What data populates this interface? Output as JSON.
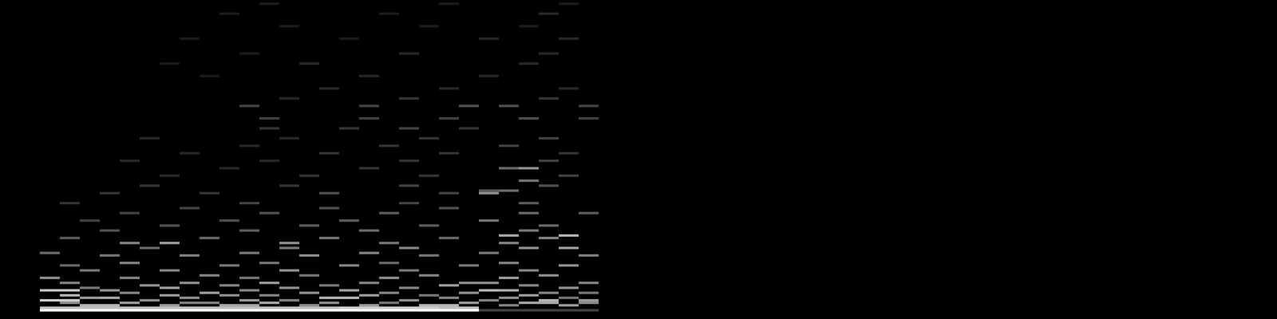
{
  "chart_data": {
    "type": "heatmap",
    "xlim": [
      0,
      64
    ],
    "ylim": [
      0,
      128
    ],
    "color_range": [
      0,
      100
    ],
    "tick_labels": false,
    "grid": false,
    "cells": [
      [
        2,
        3,
        100
      ],
      [
        3,
        3,
        100
      ],
      [
        4,
        3,
        100
      ],
      [
        5,
        3,
        100
      ],
      [
        6,
        3,
        100
      ],
      [
        7,
        3,
        100
      ],
      [
        8,
        3,
        100
      ],
      [
        9,
        3,
        100
      ],
      [
        10,
        3,
        100
      ],
      [
        11,
        3,
        100
      ],
      [
        12,
        3,
        100
      ],
      [
        13,
        3,
        100
      ],
      [
        14,
        3,
        100
      ],
      [
        15,
        3,
        100
      ],
      [
        16,
        3,
        100
      ],
      [
        17,
        3,
        100
      ],
      [
        18,
        3,
        100
      ],
      [
        19,
        3,
        100
      ],
      [
        20,
        3,
        100
      ],
      [
        21,
        3,
        100
      ],
      [
        22,
        3,
        100
      ],
      [
        23,
        3,
        100
      ],
      [
        24,
        3,
        25
      ],
      [
        25,
        3,
        25
      ],
      [
        26,
        3,
        25
      ],
      [
        27,
        3,
        25
      ],
      [
        28,
        3,
        25
      ],
      [
        29,
        3,
        25
      ],
      [
        2,
        4,
        75
      ],
      [
        3,
        4,
        75
      ],
      [
        4,
        4,
        75
      ],
      [
        5,
        4,
        75
      ],
      [
        6,
        4,
        75
      ],
      [
        7,
        4,
        75
      ],
      [
        8,
        4,
        75
      ],
      [
        9,
        4,
        75
      ],
      [
        10,
        4,
        75
      ],
      [
        11,
        4,
        75
      ],
      [
        12,
        4,
        75
      ],
      [
        13,
        4,
        75
      ],
      [
        14,
        4,
        75
      ],
      [
        15,
        4,
        75
      ],
      [
        16,
        4,
        75
      ],
      [
        17,
        4,
        80
      ],
      [
        18,
        4,
        80
      ],
      [
        19,
        4,
        80
      ],
      [
        20,
        4,
        80
      ],
      [
        21,
        4,
        80
      ],
      [
        22,
        4,
        75
      ],
      [
        23,
        4,
        75
      ],
      [
        4,
        5,
        70
      ],
      [
        5,
        5,
        70
      ],
      [
        8,
        5,
        60
      ],
      [
        11,
        5,
        65
      ],
      [
        12,
        5,
        65
      ],
      [
        15,
        5,
        55
      ],
      [
        18,
        5,
        60
      ],
      [
        21,
        5,
        70
      ],
      [
        22,
        5,
        70
      ],
      [
        25,
        5,
        50
      ],
      [
        28,
        5,
        60
      ],
      [
        3,
        6,
        55
      ],
      [
        6,
        6,
        60
      ],
      [
        9,
        6,
        50
      ],
      [
        10,
        6,
        50
      ],
      [
        13,
        6,
        65
      ],
      [
        16,
        6,
        55
      ],
      [
        19,
        6,
        45
      ],
      [
        23,
        6,
        60
      ],
      [
        26,
        6,
        65
      ],
      [
        27,
        6,
        65
      ],
      [
        29,
        6,
        55
      ],
      [
        2,
        7,
        80
      ],
      [
        3,
        7,
        80
      ],
      [
        7,
        7,
        55
      ],
      [
        12,
        7,
        60
      ],
      [
        14,
        7,
        50
      ],
      [
        20,
        7,
        55
      ],
      [
        24,
        7,
        50
      ],
      [
        27,
        7,
        70
      ],
      [
        29,
        7,
        60
      ],
      [
        4,
        8,
        60
      ],
      [
        5,
        8,
        65
      ],
      [
        9,
        8,
        55
      ],
      [
        16,
        8,
        70
      ],
      [
        17,
        8,
        70
      ],
      [
        22,
        8,
        50
      ],
      [
        25,
        8,
        55
      ],
      [
        28,
        8,
        45
      ],
      [
        3,
        9,
        70
      ],
      [
        8,
        9,
        60
      ],
      [
        11,
        9,
        55
      ],
      [
        13,
        9,
        50
      ],
      [
        18,
        9,
        60
      ],
      [
        21,
        9,
        45
      ],
      [
        26,
        9,
        60
      ],
      [
        6,
        10,
        50
      ],
      [
        10,
        10,
        60
      ],
      [
        15,
        10,
        55
      ],
      [
        19,
        10,
        50
      ],
      [
        23,
        10,
        55
      ],
      [
        27,
        10,
        50
      ],
      [
        29,
        10,
        45
      ],
      [
        2,
        11,
        75
      ],
      [
        3,
        11,
        75
      ],
      [
        5,
        11,
        55
      ],
      [
        12,
        11,
        50
      ],
      [
        17,
        11,
        60
      ],
      [
        24,
        11,
        70
      ],
      [
        25,
        11,
        65
      ],
      [
        4,
        12,
        45
      ],
      [
        8,
        12,
        60
      ],
      [
        14,
        12,
        55
      ],
      [
        20,
        12,
        50
      ],
      [
        28,
        12,
        55
      ],
      [
        7,
        13,
        55
      ],
      [
        11,
        13,
        50
      ],
      [
        16,
        13,
        45
      ],
      [
        22,
        13,
        60
      ],
      [
        26,
        13,
        50
      ],
      [
        3,
        14,
        50
      ],
      [
        9,
        14,
        55
      ],
      [
        13,
        14,
        60
      ],
      [
        18,
        14,
        50
      ],
      [
        23,
        14,
        55
      ],
      [
        24,
        14,
        55
      ],
      [
        29,
        14,
        50
      ],
      [
        2,
        16,
        55
      ],
      [
        6,
        16,
        50
      ],
      [
        12,
        16,
        45
      ],
      [
        19,
        16,
        55
      ],
      [
        25,
        16,
        60
      ],
      [
        10,
        17,
        50
      ],
      [
        15,
        17,
        45
      ],
      [
        21,
        17,
        50
      ],
      [
        27,
        17,
        55
      ],
      [
        4,
        19,
        45
      ],
      [
        8,
        19,
        50
      ],
      [
        14,
        19,
        55
      ],
      [
        20,
        19,
        45
      ],
      [
        26,
        19,
        50
      ],
      [
        3,
        21,
        40
      ],
      [
        11,
        21,
        45
      ],
      [
        17,
        21,
        50
      ],
      [
        23,
        21,
        45
      ],
      [
        28,
        21,
        55
      ],
      [
        6,
        22,
        50
      ],
      [
        13,
        22,
        45
      ],
      [
        19,
        22,
        40
      ],
      [
        25,
        22,
        50
      ],
      [
        5,
        25,
        45
      ],
      [
        9,
        25,
        50
      ],
      [
        15,
        25,
        55
      ],
      [
        21,
        25,
        45
      ],
      [
        29,
        25,
        50
      ],
      [
        2,
        26,
        40
      ],
      [
        12,
        26,
        45
      ],
      [
        18,
        26,
        50
      ],
      [
        24,
        26,
        45
      ],
      [
        7,
        28,
        40
      ],
      [
        14,
        28,
        45
      ],
      [
        20,
        28,
        50
      ],
      [
        26,
        28,
        55
      ],
      [
        28,
        28,
        60
      ],
      [
        6,
        30,
        50
      ],
      [
        8,
        30,
        60
      ],
      [
        14,
        30,
        55
      ],
      [
        19,
        30,
        45
      ],
      [
        25,
        30,
        50
      ],
      [
        3,
        32,
        35
      ],
      [
        10,
        32,
        40
      ],
      [
        16,
        32,
        45
      ],
      [
        22,
        32,
        40
      ],
      [
        27,
        32,
        50
      ],
      [
        25,
        33,
        65
      ],
      [
        28,
        33,
        70
      ],
      [
        5,
        35,
        30
      ],
      [
        12,
        35,
        35
      ],
      [
        18,
        35,
        40
      ],
      [
        26,
        35,
        45
      ],
      [
        8,
        37,
        30
      ],
      [
        15,
        37,
        35
      ],
      [
        21,
        37,
        35
      ],
      [
        27,
        37,
        40
      ],
      [
        4,
        39,
        25
      ],
      [
        11,
        39,
        30
      ],
      [
        17,
        39,
        35
      ],
      [
        24,
        39,
        45
      ],
      [
        6,
        42,
        25
      ],
      [
        13,
        42,
        30
      ],
      [
        19,
        42,
        35
      ],
      [
        26,
        42,
        40
      ],
      [
        29,
        42,
        35
      ],
      [
        9,
        44,
        25
      ],
      [
        16,
        44,
        30
      ],
      [
        22,
        44,
        30
      ],
      [
        3,
        46,
        20
      ],
      [
        12,
        46,
        25
      ],
      [
        20,
        46,
        25
      ],
      [
        26,
        46,
        35
      ],
      [
        5,
        50,
        20
      ],
      [
        10,
        50,
        20
      ],
      [
        16,
        50,
        30
      ],
      [
        22,
        50,
        25
      ],
      [
        24,
        50,
        55
      ],
      [
        24,
        51,
        35
      ],
      [
        25,
        51,
        40
      ],
      [
        7,
        53,
        20
      ],
      [
        14,
        53,
        20
      ],
      [
        20,
        53,
        25
      ],
      [
        27,
        53,
        30
      ],
      [
        26,
        55,
        45
      ],
      [
        8,
        57,
        15
      ],
      [
        15,
        57,
        20
      ],
      [
        21,
        57,
        20
      ],
      [
        28,
        57,
        25
      ],
      [
        11,
        60,
        15
      ],
      [
        18,
        60,
        20
      ],
      [
        25,
        60,
        40
      ],
      [
        26,
        60,
        55
      ],
      [
        6,
        63,
        15
      ],
      [
        13,
        63,
        15
      ],
      [
        20,
        63,
        20
      ],
      [
        27,
        63,
        25
      ],
      [
        9,
        66,
        15
      ],
      [
        16,
        66,
        20
      ],
      [
        22,
        66,
        20
      ],
      [
        28,
        66,
        20
      ],
      [
        12,
        69,
        15
      ],
      [
        19,
        69,
        20
      ],
      [
        25,
        69,
        25
      ],
      [
        7,
        72,
        15
      ],
      [
        14,
        72,
        15
      ],
      [
        21,
        72,
        20
      ],
      [
        27,
        72,
        25
      ],
      [
        13,
        76,
        20
      ],
      [
        17,
        76,
        20
      ],
      [
        20,
        76,
        25
      ],
      [
        23,
        76,
        20
      ],
      [
        13,
        80,
        25
      ],
      [
        18,
        80,
        25
      ],
      [
        22,
        80,
        25
      ],
      [
        26,
        80,
        30
      ],
      [
        29,
        80,
        25
      ],
      [
        12,
        85,
        25
      ],
      [
        18,
        85,
        25
      ],
      [
        23,
        85,
        30
      ],
      [
        25,
        85,
        30
      ],
      [
        29,
        85,
        25
      ],
      [
        14,
        88,
        15
      ],
      [
        20,
        88,
        20
      ],
      [
        27,
        88,
        20
      ],
      [
        16,
        92,
        15
      ],
      [
        22,
        92,
        15
      ],
      [
        28,
        92,
        15
      ],
      [
        10,
        97,
        10
      ],
      [
        18,
        97,
        15
      ],
      [
        24,
        97,
        15
      ],
      [
        8,
        102,
        10
      ],
      [
        15,
        102,
        15
      ],
      [
        26,
        102,
        15
      ],
      [
        12,
        106,
        10
      ],
      [
        20,
        106,
        15
      ],
      [
        27,
        106,
        15
      ],
      [
        9,
        112,
        10
      ],
      [
        17,
        112,
        10
      ],
      [
        24,
        112,
        15
      ],
      [
        28,
        112,
        15
      ],
      [
        14,
        117,
        10
      ],
      [
        21,
        117,
        10
      ],
      [
        26,
        117,
        10
      ],
      [
        11,
        122,
        10
      ],
      [
        19,
        122,
        10
      ],
      [
        27,
        122,
        15
      ],
      [
        13,
        126,
        10
      ],
      [
        22,
        126,
        10
      ],
      [
        28,
        126,
        10
      ]
    ]
  }
}
